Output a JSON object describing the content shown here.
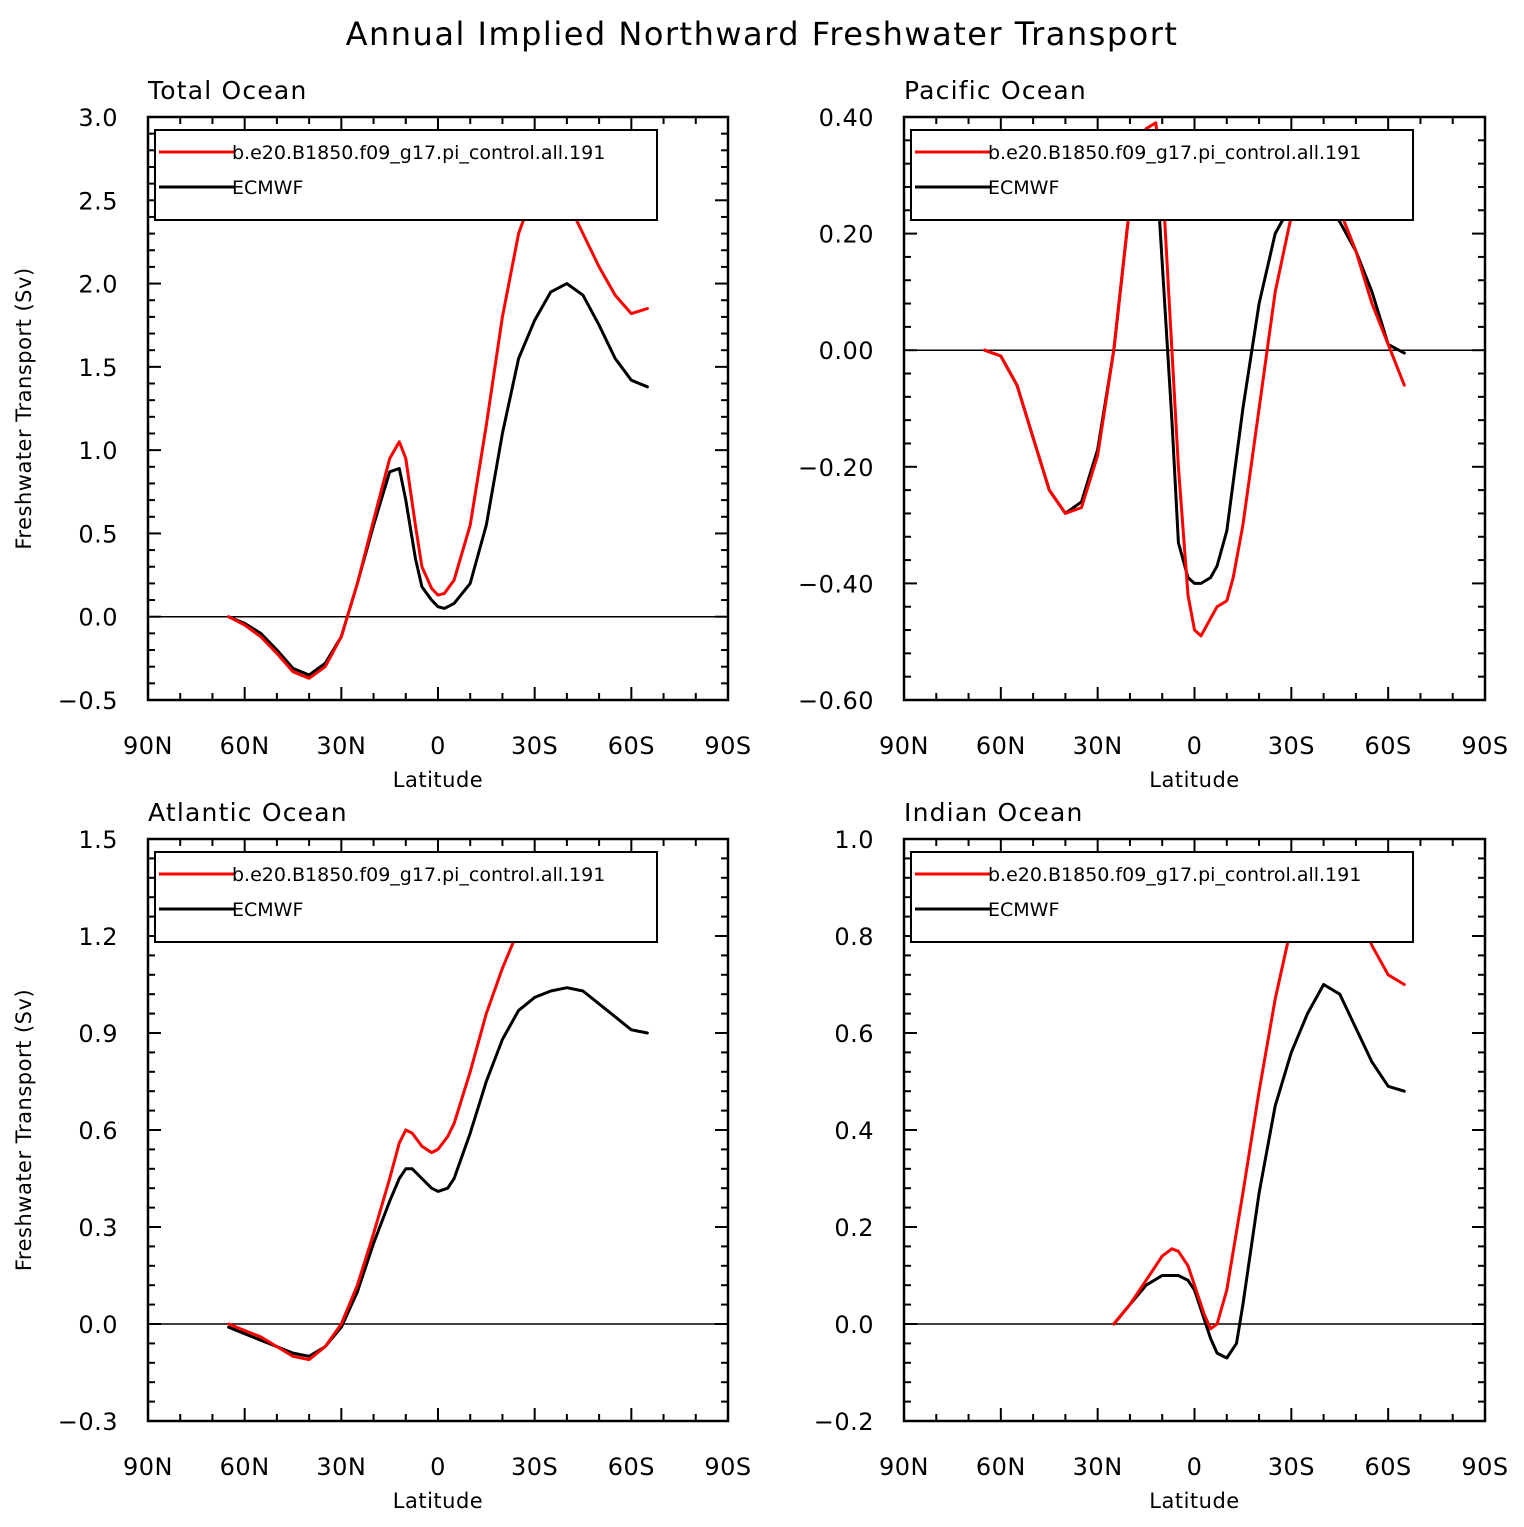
{
  "title": "Annual Implied Northward Freshwater Transport",
  "colors": {
    "model": "#ff0000",
    "obs": "#000000",
    "zero_line": "#000000"
  },
  "chart_data": [
    {
      "type": "line",
      "title": "Total Ocean",
      "xlabel": "Latitude",
      "ylabel": "Freshwater Transport (Sv)",
      "xlim": [
        -90,
        90
      ],
      "ylim": [
        -0.5,
        3.0
      ],
      "x_ticks": [
        "90N",
        "60N",
        "30N",
        "0",
        "30S",
        "60S",
        "90S"
      ],
      "y_ticks": [
        "−0.5",
        "0.0",
        "0.5",
        "1.0",
        "1.5",
        "2.0",
        "2.5",
        "3.0"
      ],
      "grid": false,
      "legend": "top-left",
      "series": [
        {
          "name": "b.e20.B1850.f09_g17.pi_control.all.191",
          "color": "#ff0000",
          "x": [
            -65,
            -60,
            -55,
            -50,
            -45,
            -40,
            -35,
            -30,
            -25,
            -20,
            -15,
            -12,
            -10,
            -7,
            -5,
            -2,
            0,
            2,
            5,
            10,
            15,
            20,
            25,
            30,
            35,
            40,
            45,
            50,
            55,
            60,
            65
          ],
          "y": [
            0.0,
            -0.05,
            -0.12,
            -0.22,
            -0.33,
            -0.37,
            -0.3,
            -0.12,
            0.2,
            0.58,
            0.95,
            1.05,
            0.95,
            0.55,
            0.3,
            0.17,
            0.13,
            0.14,
            0.22,
            0.55,
            1.15,
            1.8,
            2.3,
            2.57,
            2.63,
            2.5,
            2.3,
            2.1,
            1.93,
            1.82,
            1.85
          ]
        },
        {
          "name": "ECMWF",
          "color": "#000000",
          "x": [
            -65,
            -60,
            -55,
            -50,
            -45,
            -40,
            -35,
            -30,
            -25,
            -20,
            -15,
            -12,
            -10,
            -7,
            -5,
            -2,
            0,
            2,
            5,
            10,
            15,
            20,
            25,
            30,
            35,
            40,
            45,
            50,
            55,
            60,
            65
          ],
          "y": [
            0.0,
            -0.04,
            -0.1,
            -0.2,
            -0.31,
            -0.35,
            -0.28,
            -0.12,
            0.2,
            0.55,
            0.87,
            0.89,
            0.7,
            0.35,
            0.18,
            0.1,
            0.06,
            0.05,
            0.08,
            0.2,
            0.55,
            1.1,
            1.55,
            1.78,
            1.95,
            2.0,
            1.93,
            1.75,
            1.55,
            1.42,
            1.38
          ]
        }
      ]
    },
    {
      "type": "line",
      "title": "Pacific Ocean",
      "xlabel": "Latitude",
      "ylabel": "",
      "xlim": [
        -90,
        90
      ],
      "ylim": [
        -0.6,
        0.4
      ],
      "x_ticks": [
        "90N",
        "60N",
        "30N",
        "0",
        "30S",
        "60S",
        "90S"
      ],
      "y_ticks": [
        "−0.60",
        "−0.40",
        "−0.20",
        "0.00",
        "0.20",
        "0.40"
      ],
      "grid": false,
      "legend": "top-left",
      "series": [
        {
          "name": "b.e20.B1850.f09_g17.pi_control.all.191",
          "color": "#ff0000",
          "x": [
            -65,
            -60,
            -55,
            -50,
            -45,
            -40,
            -35,
            -30,
            -25,
            -20,
            -15,
            -12,
            -10,
            -7,
            -5,
            -2,
            0,
            2,
            5,
            7,
            10,
            12,
            15,
            20,
            25,
            30,
            35,
            40,
            45,
            50,
            55,
            60,
            65
          ],
          "y": [
            0.0,
            -0.01,
            -0.06,
            -0.15,
            -0.24,
            -0.28,
            -0.27,
            -0.18,
            0.0,
            0.25,
            0.38,
            0.39,
            0.3,
            0.0,
            -0.2,
            -0.42,
            -0.48,
            -0.49,
            -0.46,
            -0.44,
            -0.43,
            -0.39,
            -0.3,
            -0.1,
            0.1,
            0.23,
            0.28,
            0.28,
            0.24,
            0.17,
            0.08,
            0.01,
            -0.06
          ]
        },
        {
          "name": "ECMWF",
          "color": "#000000",
          "x": [
            -65,
            -60,
            -55,
            -50,
            -45,
            -40,
            -35,
            -30,
            -25,
            -20,
            -15,
            -12,
            -10,
            -7,
            -5,
            -2,
            0,
            2,
            5,
            7,
            10,
            15,
            20,
            25,
            30,
            35,
            40,
            45,
            50,
            55,
            60,
            65
          ],
          "y": [
            0.0,
            -0.01,
            -0.06,
            -0.15,
            -0.24,
            -0.28,
            -0.26,
            -0.17,
            0.0,
            0.25,
            0.37,
            0.33,
            0.15,
            -0.12,
            -0.33,
            -0.39,
            -0.4,
            -0.4,
            -0.39,
            -0.37,
            -0.31,
            -0.1,
            0.08,
            0.2,
            0.25,
            0.27,
            0.26,
            0.22,
            0.17,
            0.1,
            0.01,
            -0.005
          ]
        }
      ]
    },
    {
      "type": "line",
      "title": "Atlantic Ocean",
      "xlabel": "Latitude",
      "ylabel": "Freshwater Transport (Sv)",
      "xlim": [
        -90,
        90
      ],
      "ylim": [
        -0.3,
        1.5
      ],
      "x_ticks": [
        "90N",
        "60N",
        "30N",
        "0",
        "30S",
        "60S",
        "90S"
      ],
      "y_ticks": [
        "−0.3",
        "0.0",
        "0.3",
        "0.6",
        "0.9",
        "1.2",
        "1.5"
      ],
      "grid": false,
      "legend": "top-left",
      "series": [
        {
          "name": "b.e20.B1850.f09_g17.pi_control.all.191",
          "color": "#ff0000",
          "x": [
            -65,
            -60,
            -55,
            -50,
            -45,
            -40,
            -35,
            -30,
            -25,
            -20,
            -15,
            -12,
            -10,
            -8,
            -5,
            -2,
            0,
            3,
            5,
            10,
            15,
            20,
            25,
            30,
            35,
            40,
            45,
            50,
            55,
            60,
            65
          ],
          "y": [
            0.0,
            -0.02,
            -0.04,
            -0.07,
            -0.1,
            -0.11,
            -0.07,
            0.0,
            0.12,
            0.28,
            0.45,
            0.56,
            0.6,
            0.59,
            0.55,
            0.53,
            0.54,
            0.58,
            0.62,
            0.78,
            0.96,
            1.1,
            1.22,
            1.3,
            1.35,
            1.38,
            1.37,
            1.32,
            1.27,
            1.22,
            1.2
          ]
        },
        {
          "name": "ECMWF",
          "color": "#000000",
          "x": [
            -65,
            -60,
            -55,
            -50,
            -45,
            -40,
            -35,
            -30,
            -25,
            -20,
            -15,
            -12,
            -10,
            -8,
            -5,
            -2,
            0,
            3,
            5,
            10,
            15,
            20,
            25,
            30,
            35,
            40,
            45,
            50,
            55,
            60,
            65
          ],
          "y": [
            -0.01,
            -0.03,
            -0.05,
            -0.07,
            -0.09,
            -0.1,
            -0.07,
            -0.01,
            0.1,
            0.25,
            0.38,
            0.45,
            0.48,
            0.48,
            0.45,
            0.42,
            0.41,
            0.42,
            0.45,
            0.59,
            0.75,
            0.88,
            0.97,
            1.01,
            1.03,
            1.04,
            1.03,
            0.99,
            0.95,
            0.91,
            0.9
          ]
        }
      ]
    },
    {
      "type": "line",
      "title": "Indian Ocean",
      "xlabel": "Latitude",
      "ylabel": "",
      "xlim": [
        -90,
        90
      ],
      "ylim": [
        -0.2,
        1.0
      ],
      "x_ticks": [
        "90N",
        "60N",
        "30N",
        "0",
        "30S",
        "60S",
        "90S"
      ],
      "y_ticks": [
        "−0.2",
        "0.0",
        "0.2",
        "0.4",
        "0.6",
        "0.8",
        "1.0"
      ],
      "grid": false,
      "legend": "top-left",
      "series": [
        {
          "name": "b.e20.B1850.f09_g17.pi_control.all.191",
          "color": "#ff0000",
          "x": [
            -25,
            -20,
            -15,
            -10,
            -7,
            -5,
            -2,
            0,
            3,
            5,
            7,
            10,
            15,
            20,
            25,
            30,
            35,
            40,
            45,
            50,
            55,
            60,
            65
          ],
          "y": [
            0.0,
            0.04,
            0.09,
            0.14,
            0.155,
            0.15,
            0.12,
            0.08,
            0.02,
            -0.01,
            0.0,
            0.07,
            0.27,
            0.48,
            0.67,
            0.82,
            0.92,
            0.96,
            0.93,
            0.86,
            0.78,
            0.72,
            0.7
          ]
        },
        {
          "name": "ECMWF",
          "color": "#000000",
          "x": [
            -25,
            -20,
            -15,
            -10,
            -7,
            -5,
            -2,
            0,
            3,
            5,
            7,
            10,
            13,
            15,
            20,
            25,
            30,
            35,
            40,
            45,
            50,
            55,
            60,
            65
          ],
          "y": [
            0.0,
            0.04,
            0.08,
            0.1,
            0.1,
            0.1,
            0.09,
            0.07,
            0.01,
            -0.03,
            -0.06,
            -0.07,
            -0.04,
            0.04,
            0.27,
            0.45,
            0.56,
            0.64,
            0.7,
            0.68,
            0.61,
            0.54,
            0.49,
            0.48
          ]
        }
      ]
    }
  ]
}
